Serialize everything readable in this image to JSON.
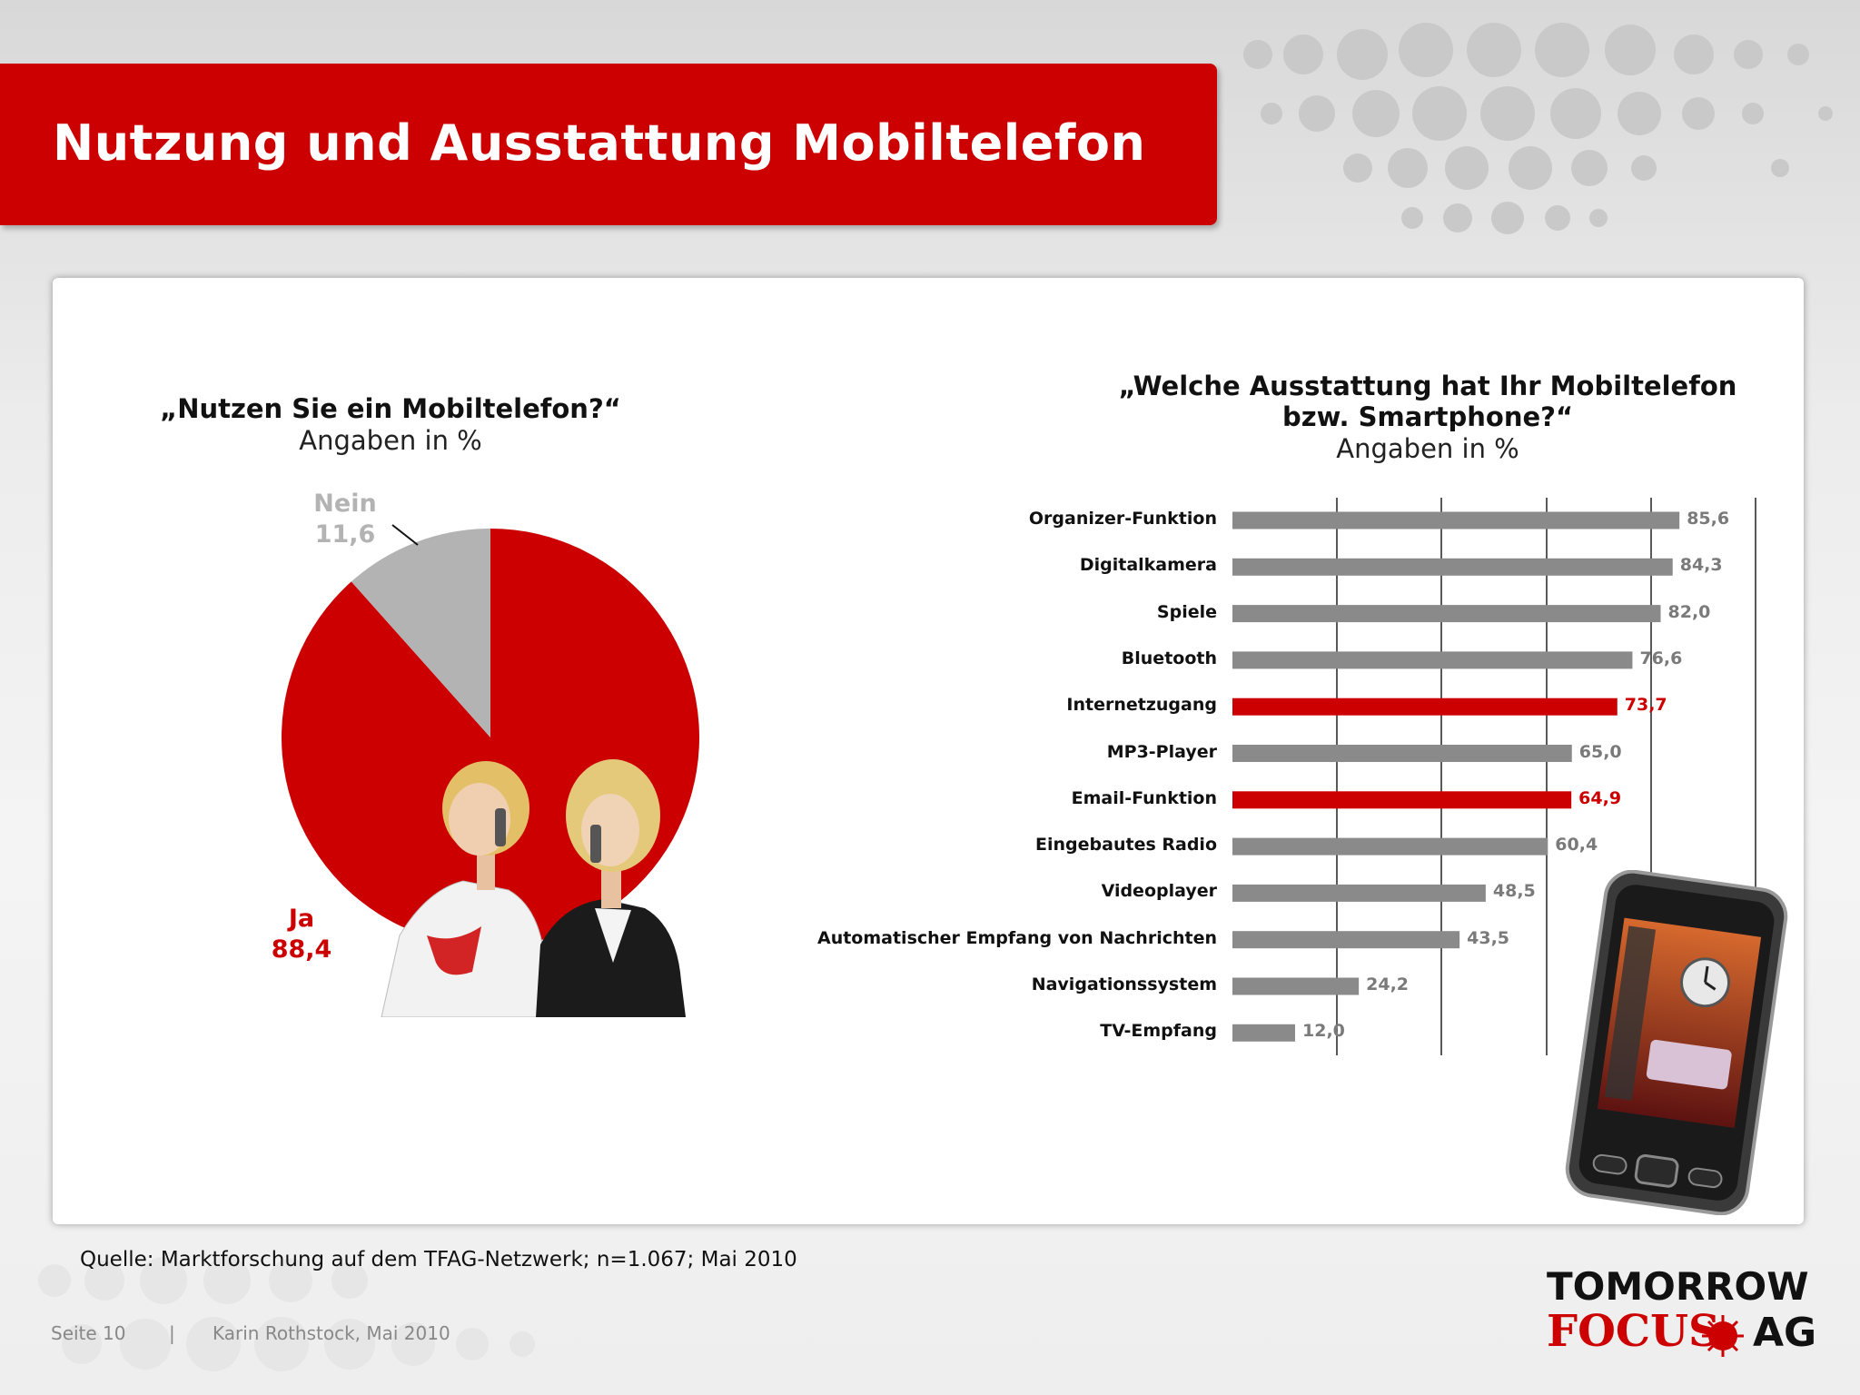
{
  "slide": {
    "title": "Nutzung und Ausstattung Mobiltelefon",
    "source": "Quelle: Marktforschung auf dem TFAG-Netzwerk; n=1.067; Mai 2010",
    "page": "Seite 10",
    "separator": "|",
    "author": "Karin Rothstock, Mai 2010",
    "logo": {
      "line1": "TOMORROW",
      "focus": "FOCUS",
      "ag": "AG"
    }
  },
  "pie_chart": {
    "question": "„Nutzen Sie ein Mobiltelefon?“",
    "subtitle": "Angaben in %"
  },
  "bar_chart": {
    "question_line1": "„Welche Ausstattung hat Ihr Mobiltelefon",
    "question_line2": "bzw. Smartphone?“",
    "subtitle": "Angaben in %"
  },
  "colors": {
    "red": "#cc0000",
    "grey_bar": "#8a8a8a",
    "grey_pie": "#b3b3b3"
  },
  "chart_data": [
    {
      "type": "pie",
      "title": "„Nutzen Sie ein Mobiltelefon?“",
      "subtitle": "Angaben in %",
      "slices": [
        {
          "label": "Ja",
          "value": 88.4,
          "display": "88,4",
          "color": "#cc0000"
        },
        {
          "label": "Nein",
          "value": 11.6,
          "display": "11,6",
          "color": "#b3b3b3"
        }
      ]
    },
    {
      "type": "bar",
      "orientation": "horizontal",
      "title": "„Welche Ausstattung hat Ihr Mobiltelefon bzw. Smartphone?“",
      "subtitle": "Angaben in %",
      "xlim": [
        0,
        100
      ],
      "grid": true,
      "categories": [
        "Organizer-Funktion",
        "Digitalkamera",
        "Spiele",
        "Bluetooth",
        "Internetzugang",
        "MP3-Player",
        "Email-Funktion",
        "Eingebautes Radio",
        "Videoplayer",
        "Automatischer Empfang von Nachrichten",
        "Navigationssystem",
        "TV-Empfang"
      ],
      "values": [
        85.6,
        84.3,
        82.0,
        76.6,
        73.7,
        65.0,
        64.9,
        60.4,
        48.5,
        43.5,
        24.2,
        12.0
      ],
      "display": [
        "85,6",
        "84,3",
        "82,0",
        "76,6",
        "73,7",
        "65,0",
        "64,9",
        "60,4",
        "48,5",
        "43,5",
        "24,2",
        "12,0"
      ],
      "highlighted": [
        "Internetzugang",
        "Email-Funktion"
      ]
    }
  ]
}
